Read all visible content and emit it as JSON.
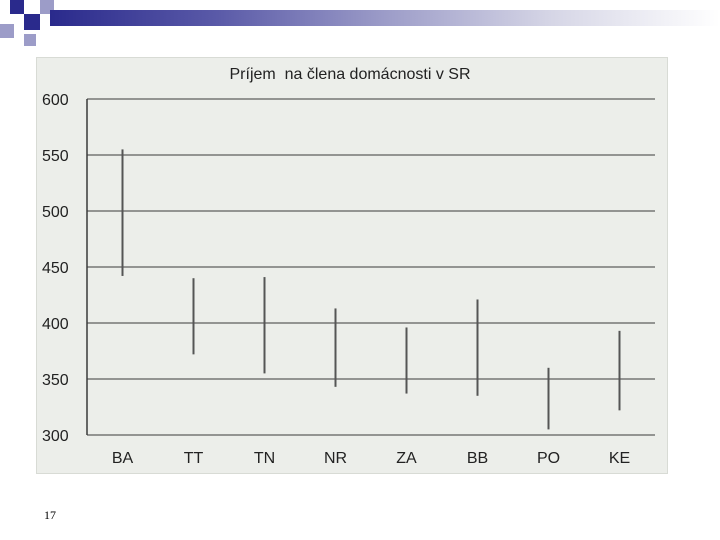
{
  "slide": {
    "number": "17"
  },
  "colors": {
    "decoration_dark": "#2a2a8c",
    "decoration_light": "#9c9cc8",
    "panel": "#eceeea",
    "gridline": "#3a3a3a",
    "range_line": "#555555"
  },
  "chart_data": {
    "type": "range",
    "title": "Príjem  na člena domácnosti v SR",
    "xlabel": "",
    "ylabel": "",
    "ylim": [
      300,
      600
    ],
    "yticks": [
      600,
      550,
      500,
      450,
      400,
      350,
      300
    ],
    "grid": true,
    "categories": [
      "BA",
      "TT",
      "TN",
      "NR",
      "ZA",
      "BB",
      "PO",
      "KE"
    ],
    "series": [
      {
        "low": [
          442,
          372,
          355,
          343,
          337,
          335,
          305,
          322
        ],
        "high": [
          555,
          440,
          441,
          413,
          396,
          421,
          360,
          393
        ]
      }
    ]
  }
}
